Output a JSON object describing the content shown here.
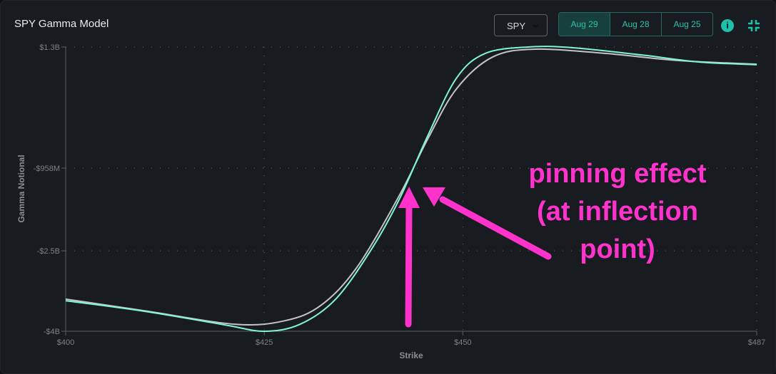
{
  "header": {
    "title": "SPY Gamma Model",
    "ticker": "SPY",
    "dates": [
      "Aug 29",
      "Aug 28",
      "Aug 25"
    ],
    "active_date": "Aug 29",
    "info_icon": "info-icon",
    "collapse_icon": "collapse-icon"
  },
  "annotation": {
    "text_lines": [
      "pinning effect",
      "(at inflection",
      "point)"
    ],
    "color": "#ff33cc"
  },
  "chart_data": {
    "type": "line",
    "title": "",
    "xlabel": "Strike",
    "ylabel": "Gamma Notional",
    "xlim": [
      400,
      487
    ],
    "ylim": [
      -4.0,
      1.3
    ],
    "x_ticks": [
      {
        "value": 400,
        "label": "$400"
      },
      {
        "value": 425,
        "label": "$425"
      },
      {
        "value": 450,
        "label": "$450"
      },
      {
        "value": 487,
        "label": "$487"
      }
    ],
    "y_ticks": [
      {
        "value": 1.3,
        "label": "$1.3B"
      },
      {
        "value": -0.958,
        "label": "-$958M"
      },
      {
        "value": -2.5,
        "label": "-$2.5B"
      },
      {
        "value": -4.0,
        "label": "-$4B"
      }
    ],
    "y_unit": "billions USD",
    "grid": "dotted",
    "series": [
      {
        "color": "#7ff5d6",
        "points": [
          [
            400,
            -3.43
          ],
          [
            410,
            -3.63
          ],
          [
            420,
            -3.88
          ],
          [
            425,
            -4.0
          ],
          [
            429.5,
            -3.87
          ],
          [
            434,
            -3.4
          ],
          [
            438.5,
            -2.47
          ],
          [
            442,
            -1.54
          ],
          [
            445.6,
            -0.35
          ],
          [
            449.2,
            0.72
          ],
          [
            452.8,
            1.18
          ],
          [
            458.2,
            1.3
          ],
          [
            463.6,
            1.29
          ],
          [
            472.6,
            1.15
          ],
          [
            479.8,
            1.02
          ],
          [
            487,
            0.97
          ]
        ]
      },
      {
        "color": "#c4c4c4",
        "points": [
          [
            400,
            -3.4
          ],
          [
            410,
            -3.62
          ],
          [
            421.4,
            -3.87
          ],
          [
            427.7,
            -3.8
          ],
          [
            432.2,
            -3.51
          ],
          [
            436.7,
            -2.8
          ],
          [
            442,
            -1.47
          ],
          [
            445.6,
            -0.41
          ],
          [
            449.2,
            0.52
          ],
          [
            453.7,
            1.11
          ],
          [
            459.1,
            1.26
          ],
          [
            468,
            1.18
          ],
          [
            477,
            1.05
          ],
          [
            487,
            0.98
          ]
        ]
      }
    ]
  }
}
